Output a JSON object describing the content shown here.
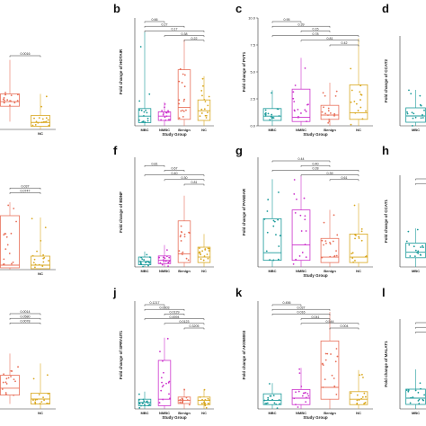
{
  "figure": {
    "chart_data": [
      {
        "panel": "a",
        "type": "box",
        "title": "",
        "ylabel": "",
        "xlabel": "",
        "categories": [
          "",
          "NC"
        ],
        "colors": [
          "#e8705a",
          "#d9a820"
        ],
        "yticks": [],
        "ylim": [
          0,
          10
        ],
        "series": [
          {
            "name": "",
            "q1": 3.0,
            "median": 3.6,
            "q3": 4.6,
            "min": 1.0,
            "max": 9.0
          },
          {
            "name": "NC",
            "q1": 0.4,
            "median": 0.9,
            "q3": 1.8,
            "min": 0.0,
            "max": 4.6
          }
        ],
        "pvalues": [
          {
            "label": "0.0016",
            "from": 0,
            "to": 1,
            "level": 0
          }
        ]
      },
      {
        "panel": "b",
        "type": "box",
        "title": "",
        "ylabel": "Fold change of HOTAIR",
        "xlabel": "Study Group",
        "categories": [
          "MBC",
          "NMBC",
          "Benign",
          "NC"
        ],
        "colors": [
          "#1a9a9a",
          "#cc33cc",
          "#e8705a",
          "#d9a820"
        ],
        "yticks": [],
        "ylim": [
          0,
          10
        ],
        "series": [
          {
            "name": "MBC",
            "q1": 0.3,
            "median": 0.9,
            "q3": 1.6,
            "min": 0.0,
            "max": 8.7
          },
          {
            "name": "NMBC",
            "q1": 0.5,
            "median": 0.9,
            "q3": 1.3,
            "min": 0.0,
            "max": 2.2
          },
          {
            "name": "Benign",
            "q1": 0.6,
            "median": 1.7,
            "q3": 5.2,
            "min": 0.0,
            "max": 8.0
          },
          {
            "name": "NC",
            "q1": 0.5,
            "median": 1.4,
            "q3": 2.4,
            "min": 0.0,
            "max": 4.6
          }
        ],
        "pvalues": [
          {
            "label": "0.22",
            "from": 2,
            "to": 3,
            "level": 4
          },
          {
            "label": "0.38",
            "from": 1,
            "to": 3,
            "level": 3
          },
          {
            "label": "0.17",
            "from": 0,
            "to": 3,
            "level": 2
          },
          {
            "label": "0.27",
            "from": 0,
            "to": 2,
            "level": 1
          },
          {
            "label": "0.66",
            "from": 0,
            "to": 1,
            "level": 0
          }
        ]
      },
      {
        "panel": "c",
        "type": "box",
        "title": "",
        "ylabel": "Fold change of PVT1",
        "xlabel": "Study Group",
        "categories": [
          "MBC",
          "NMBC",
          "Benign",
          "NC"
        ],
        "colors": [
          "#1a9a9a",
          "#cc33cc",
          "#e8705a",
          "#d9a820"
        ],
        "yticks": [
          "0.0",
          "2.5",
          "5.0",
          "7.5",
          "10.0"
        ],
        "ylim": [
          0,
          10
        ],
        "series": [
          {
            "name": "MBC",
            "q1": 0.5,
            "median": 0.9,
            "q3": 1.6,
            "min": 0.0,
            "max": 3.3
          },
          {
            "name": "NMBC",
            "q1": 0.4,
            "median": 0.8,
            "q3": 3.4,
            "min": 0.0,
            "max": 6.3
          },
          {
            "name": "Benign",
            "q1": 0.6,
            "median": 1.0,
            "q3": 1.9,
            "min": 0.0,
            "max": 4.0
          },
          {
            "name": "NC",
            "q1": 0.6,
            "median": 1.2,
            "q3": 3.8,
            "min": 0.0,
            "max": 8.1
          }
        ],
        "pvalues": [
          {
            "label": "0.42",
            "from": 2,
            "to": 3,
            "level": 5
          },
          {
            "label": "0.81",
            "from": 1,
            "to": 3,
            "level": 4
          },
          {
            "label": "0.78",
            "from": 0,
            "to": 3,
            "level": 3
          },
          {
            "label": "0.15",
            "from": 1,
            "to": 2,
            "level": 2
          },
          {
            "label": "0.39",
            "from": 0,
            "to": 2,
            "level": 1
          },
          {
            "label": "0.95",
            "from": 0,
            "to": 1,
            "level": 0
          }
        ]
      },
      {
        "panel": "d",
        "type": "box",
        "title": "",
        "ylabel": "Fold change of CCAT2",
        "xlabel": "",
        "categories": [
          "MBC"
        ],
        "colors": [
          "#1a9a9a"
        ],
        "yticks": [],
        "ylim": [
          0,
          10
        ],
        "series": [
          {
            "name": "MBC",
            "q1": 0.4,
            "median": 1.1,
            "q3": 2.0,
            "min": 0.0,
            "max": 4.0
          }
        ],
        "pvalues": []
      },
      {
        "panel": "e",
        "type": "box",
        "title": "",
        "ylabel": "",
        "xlabel": "",
        "categories": [
          "",
          "NC"
        ],
        "colors": [
          "#e8705a",
          "#d9a820"
        ],
        "yticks": [],
        "ylim": [
          0,
          10
        ],
        "series": [
          {
            "name": "",
            "q1": 0.2,
            "median": 0.5,
            "q3": 6.0,
            "min": 0.0,
            "max": 7.5
          },
          {
            "name": "NC",
            "q1": 0.1,
            "median": 0.5,
            "q3": 1.5,
            "min": 0.0,
            "max": 5.8
          }
        ],
        "pvalues": [
          {
            "label": "0.0747",
            "from": 0,
            "to": 1,
            "level": 2
          },
          {
            "label": "0.037",
            "from": 0,
            "to": 1,
            "level": 1
          }
        ]
      },
      {
        "panel": "f",
        "type": "box",
        "title": "",
        "ylabel": "Fold change of BDNF",
        "xlabel": "",
        "categories": [
          "MBC",
          "NMBC",
          "Benign",
          "NC"
        ],
        "colors": [
          "#1a9a9a",
          "#cc33cc",
          "#e8705a",
          "#d9a820"
        ],
        "yticks": [],
        "ylim": [
          0,
          10
        ],
        "series": [
          {
            "name": "MBC",
            "q1": 0.2,
            "median": 0.5,
            "q3": 0.9,
            "min": 0.0,
            "max": 1.4
          },
          {
            "name": "NMBC",
            "q1": 0.3,
            "median": 0.6,
            "q3": 1.0,
            "min": 0.0,
            "max": 2.0
          },
          {
            "name": "Benign",
            "q1": 0.4,
            "median": 1.2,
            "q3": 4.2,
            "min": 0.0,
            "max": 6.5
          },
          {
            "name": "NC",
            "q1": 0.4,
            "median": 0.9,
            "q3": 1.8,
            "min": 0.0,
            "max": 3.0
          }
        ],
        "pvalues": [
          {
            "label": "0.81",
            "from": 2,
            "to": 3,
            "level": 5
          },
          {
            "label": "0.30",
            "from": 1,
            "to": 3,
            "level": 4
          },
          {
            "label": "0.40",
            "from": 0,
            "to": 3,
            "level": 3
          },
          {
            "label": "0.67",
            "from": 1,
            "to": 2,
            "level": 2
          },
          {
            "label": "0.81",
            "from": 0,
            "to": 1,
            "level": 1
          }
        ]
      },
      {
        "panel": "g",
        "type": "box",
        "title": "",
        "ylabel": "Fold change of PANDAR",
        "xlabel": "Study Group",
        "categories": [
          "MBC",
          "NMBC",
          "Benign",
          "NC"
        ],
        "colors": [
          "#1a9a9a",
          "#cc33cc",
          "#e8705a",
          "#d9a820"
        ],
        "yticks": [],
        "ylim": [
          0,
          10
        ],
        "series": [
          {
            "name": "MBC",
            "q1": 0.6,
            "median": 1.3,
            "q3": 4.4,
            "min": 0.0,
            "max": 8.0
          },
          {
            "name": "NMBC",
            "q1": 0.6,
            "median": 2.0,
            "q3": 5.2,
            "min": 0.0,
            "max": 8.3
          },
          {
            "name": "Benign",
            "q1": 0.4,
            "median": 0.9,
            "q3": 2.6,
            "min": 0.0,
            "max": 5.2
          },
          {
            "name": "NC",
            "q1": 0.4,
            "median": 0.9,
            "q3": 3.0,
            "min": 0.0,
            "max": 5.8
          }
        ],
        "pvalues": [
          {
            "label": "0.61",
            "from": 2,
            "to": 3,
            "level": 4
          },
          {
            "label": "0.39",
            "from": 1,
            "to": 3,
            "level": 3
          },
          {
            "label": "0.28",
            "from": 0,
            "to": 3,
            "level": 2
          },
          {
            "label": "0.40",
            "from": 1,
            "to": 2,
            "level": 1
          },
          {
            "label": "0.44",
            "from": 0,
            "to": 2,
            "level": 0
          }
        ]
      },
      {
        "panel": "h",
        "type": "box",
        "title": "",
        "ylabel": "Fold change of CCAT1",
        "xlabel": "",
        "categories": [
          "MBC"
        ],
        "colors": [
          "#1a9a9a"
        ],
        "yticks": [],
        "ylim": [
          0,
          10
        ],
        "series": [
          {
            "name": "MBC",
            "q1": 1.0,
            "median": 1.6,
            "q3": 2.6,
            "min": 0.0,
            "max": 4.2
          }
        ],
        "pvalues": [
          {
            "label": "",
            "from": 0,
            "to": 1,
            "level": 0
          },
          {
            "label": "",
            "from": 0,
            "to": 1,
            "level": 1
          }
        ]
      },
      {
        "panel": "i",
        "type": "box",
        "title": "",
        "ylabel": "",
        "xlabel": "",
        "categories": [
          "",
          "NC"
        ],
        "colors": [
          "#e8705a",
          "#d9a820"
        ],
        "yticks": [],
        "ylim": [
          0,
          10
        ],
        "series": [
          {
            "name": "",
            "q1": 1.4,
            "median": 2.1,
            "q3": 3.4,
            "min": 0.5,
            "max": 5.6
          },
          {
            "name": "NC",
            "q1": 0.5,
            "median": 1.0,
            "q3": 1.6,
            "min": 0.0,
            "max": 4.6
          }
        ],
        "pvalues": [
          {
            "label": "0.0078",
            "from": 0,
            "to": 1,
            "level": 2
          },
          {
            "label": "0.0580",
            "from": 0,
            "to": 1,
            "level": 1
          },
          {
            "label": "0.0014",
            "from": 0,
            "to": 1,
            "level": 0
          }
        ]
      },
      {
        "panel": "j",
        "type": "box",
        "title": "",
        "ylabel": "Fold change of SPRY4IT1",
        "xlabel": "Study Group",
        "categories": [
          "MBC",
          "NMBC",
          "Benign",
          "NC"
        ],
        "colors": [
          "#1a9a9a",
          "#cc33cc",
          "#e8705a",
          "#d9a820"
        ],
        "yticks": [],
        "ylim": [
          0,
          10
        ],
        "series": [
          {
            "name": "MBC",
            "q1": 0.3,
            "median": 0.6,
            "q3": 0.9,
            "min": 0.0,
            "max": 1.6
          },
          {
            "name": "NMBC",
            "q1": 0.3,
            "median": 0.9,
            "q3": 4.5,
            "min": 0.0,
            "max": 6.6
          },
          {
            "name": "Benign",
            "q1": 0.5,
            "median": 0.8,
            "q3": 1.1,
            "min": 0.0,
            "max": 1.9
          },
          {
            "name": "NC",
            "q1": 0.4,
            "median": 0.8,
            "q3": 1.1,
            "min": 0.0,
            "max": 1.8
          }
        ],
        "pvalues": [
          {
            "label": "0.3205",
            "from": 2,
            "to": 3,
            "level": 5
          },
          {
            "label": "0.0123",
            "from": 1,
            "to": 3,
            "level": 4
          },
          {
            "label": "0.4594",
            "from": 0,
            "to": 3,
            "level": 3
          },
          {
            "label": "0.0129",
            "from": 1,
            "to": 2,
            "level": 2
          },
          {
            "label": "0.0603",
            "from": 0,
            "to": 2,
            "level": 1
          },
          {
            "label": "0.1217",
            "from": 0,
            "to": 1,
            "level": 0
          }
        ]
      },
      {
        "panel": "k",
        "type": "box",
        "title": "",
        "ylabel": "Fold change of AK058003",
        "xlabel": "Study Group",
        "categories": [
          "MBC",
          "NMBC",
          "Benign",
          "NC"
        ],
        "colors": [
          "#1a9a9a",
          "#cc33cc",
          "#e8705a",
          "#d9a820"
        ],
        "yticks": [],
        "ylim": [
          0,
          10
        ],
        "series": [
          {
            "name": "MBC",
            "q1": 0.4,
            "median": 0.8,
            "q3": 1.4,
            "min": 0.0,
            "max": 2.4
          },
          {
            "name": "NMBC",
            "q1": 0.4,
            "median": 1.0,
            "q3": 1.8,
            "min": 0.0,
            "max": 3.8
          },
          {
            "name": "Benign",
            "q1": 0.9,
            "median": 2.0,
            "q3": 6.3,
            "min": 0.0,
            "max": 9.0
          },
          {
            "name": "NC",
            "q1": 0.4,
            "median": 0.9,
            "q3": 1.6,
            "min": 0.0,
            "max": 3.6
          }
        ],
        "pvalues": [
          {
            "label": "0.004",
            "from": 2,
            "to": 3,
            "level": 5
          },
          {
            "label": "0.544",
            "from": 1,
            "to": 3,
            "level": 4
          },
          {
            "label": "0.041",
            "from": 1,
            "to": 2,
            "level": 3
          },
          {
            "label": "0.016",
            "from": 0,
            "to": 2,
            "level": 2
          },
          {
            "label": "0.037",
            "from": 0,
            "to": 2,
            "level": 1
          },
          {
            "label": "0.456",
            "from": 0,
            "to": 1,
            "level": 0
          }
        ]
      },
      {
        "panel": "l",
        "type": "box",
        "title": "",
        "ylabel": "Fold change of MALAT1",
        "xlabel": "",
        "categories": [
          "MBC"
        ],
        "colors": [
          "#1a9a9a"
        ],
        "yticks": [],
        "ylim": [
          0,
          10
        ],
        "series": [
          {
            "name": "MBC",
            "q1": 0.5,
            "median": 1.2,
            "q3": 2.2,
            "min": 0.0,
            "max": 4.4
          }
        ],
        "pvalues": [
          {
            "label": "",
            "from": 0,
            "to": 1,
            "level": 0
          },
          {
            "label": "",
            "from": 0,
            "to": 1,
            "level": 1
          },
          {
            "label": "",
            "from": 0,
            "to": 1,
            "level": 2
          }
        ]
      }
    ]
  },
  "labels": {
    "a": "",
    "b": "b",
    "c": "c",
    "d": "d",
    "e": "",
    "f": "f",
    "g": "g",
    "h": "h",
    "i": "",
    "j": "j",
    "k": "k",
    "l": "l"
  }
}
